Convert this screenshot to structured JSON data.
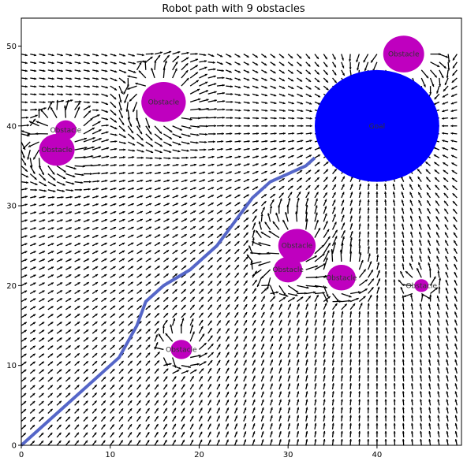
{
  "chart_data": {
    "type": "scatter",
    "title": "Robot path with 9 obstacles",
    "xlabel": "",
    "ylabel": "",
    "xlim": [
      0,
      49.5
    ],
    "ylim": [
      0,
      53.5
    ],
    "x_ticks": [
      0,
      10,
      20,
      30,
      40
    ],
    "y_ticks": [
      0,
      10,
      20,
      30,
      40,
      50
    ],
    "grid": false,
    "field_extent": {
      "x": [
        0,
        49
      ],
      "y": [
        0,
        49
      ],
      "step": 1
    },
    "goal": {
      "label": "Goal",
      "x": 40,
      "y": 40,
      "r": 7,
      "color": "#0000ff"
    },
    "obstacles": [
      {
        "label": "Obstacle",
        "x": 43,
        "y": 49,
        "r": 2.3
      },
      {
        "label": "Obstacle",
        "x": 16,
        "y": 43,
        "r": 2.5
      },
      {
        "label": "Obstacle",
        "x": 5,
        "y": 39.5,
        "r": 1.2
      },
      {
        "label": "Obstacle",
        "x": 4,
        "y": 37,
        "r": 2.0
      },
      {
        "label": "Obstacle",
        "x": 31,
        "y": 25,
        "r": 2.1
      },
      {
        "label": "Obstacle",
        "x": 30,
        "y": 22,
        "r": 1.6
      },
      {
        "label": "Obstacle",
        "x": 36,
        "y": 21,
        "r": 1.6
      },
      {
        "label": "Obstacle",
        "x": 45,
        "y": 20,
        "r": 0.8
      },
      {
        "label": "Obstacle",
        "x": 18,
        "y": 12,
        "r": 1.2
      }
    ],
    "obstacle_color": "#bf00bf",
    "path_color": "#5566c8",
    "path": [
      [
        0,
        0
      ],
      [
        3,
        3
      ],
      [
        6,
        6
      ],
      [
        9,
        9
      ],
      [
        11,
        11
      ],
      [
        13,
        15
      ],
      [
        14,
        18
      ],
      [
        16,
        20
      ],
      [
        19,
        22
      ],
      [
        22,
        25
      ],
      [
        24,
        28
      ],
      [
        26,
        31
      ],
      [
        28,
        33
      ],
      [
        30,
        34
      ],
      [
        32,
        35
      ],
      [
        33,
        36
      ]
    ]
  }
}
